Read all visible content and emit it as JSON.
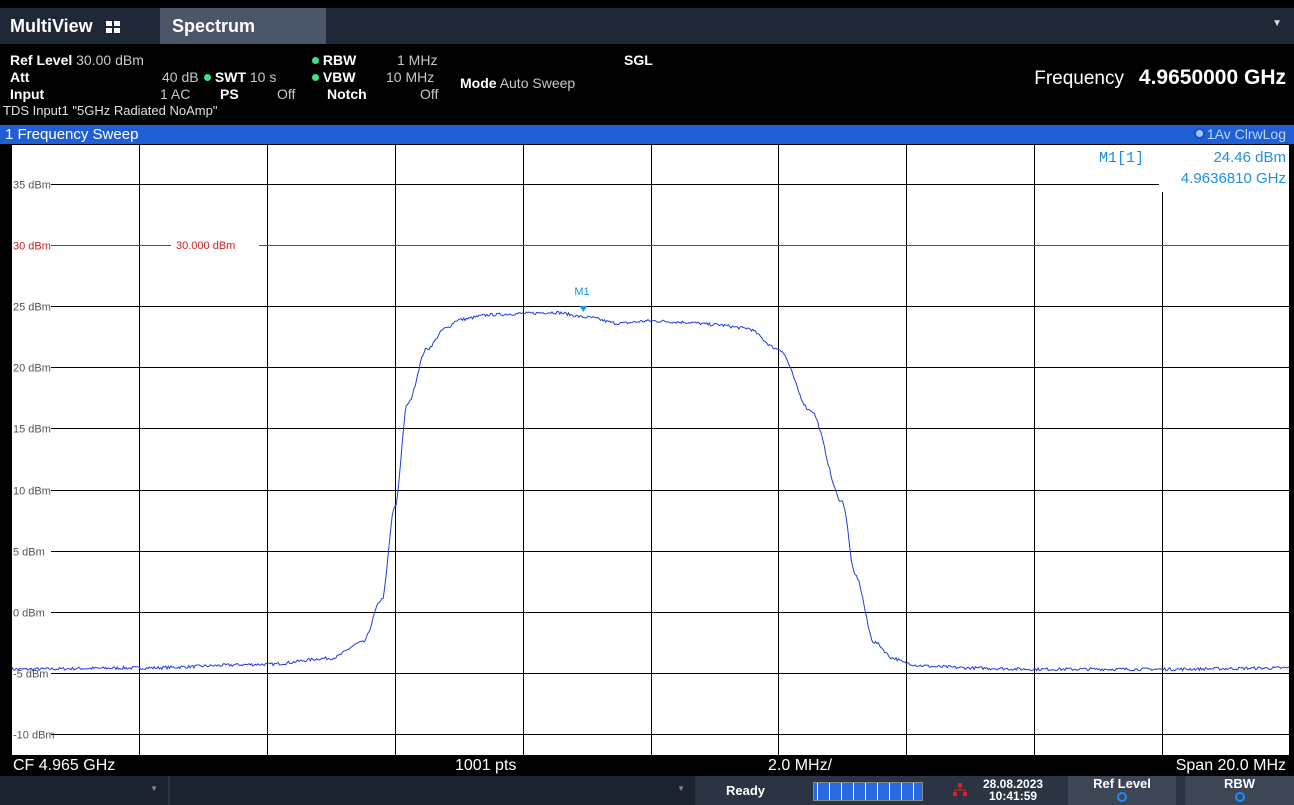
{
  "tabs": {
    "multiview": "MultiView",
    "spectrum": "Spectrum"
  },
  "settings": {
    "ref_level_label": "Ref Level",
    "ref_level_value": "30.00 dBm",
    "att_label": "Att",
    "att_value": "40 dB",
    "input_label": "Input",
    "input_value": "1 AC",
    "rbw_label": "RBW",
    "rbw_value": "1 MHz",
    "swt_label": "SWT",
    "swt_value": "10 s",
    "vbw_label": "VBW",
    "vbw_value": "10 MHz",
    "ps_label": "PS",
    "ps_value": "Off",
    "notch_label": "Notch",
    "notch_value": "Off",
    "sgl": "SGL",
    "mode_label": "Mode",
    "mode_value": "Auto Sweep",
    "frequency_label": "Frequency",
    "frequency_value": "4.9650000 GHz",
    "tds_input": "TDS Input1 \"5GHz Radiated NoAmp\""
  },
  "panel": {
    "title": "1 Frequency Sweep",
    "trace_info": "1Av ClrwLog"
  },
  "marker": {
    "label": "M1",
    "readout_label": "M1[1]",
    "readout_level": "24.46 dBm",
    "readout_freq": "4.9636810 GHz"
  },
  "limit_line": {
    "label": "30.000 dBm",
    "value": 30
  },
  "footer": {
    "cf": "CF 4.965 GHz",
    "pts": "1001 pts",
    "div": "2.0 MHz/",
    "span": "Span 20.0 MHz"
  },
  "statusbar": {
    "ready": "Ready",
    "date": "28.08.2023",
    "time": "10:41:59",
    "btn_ref_level": "Ref Level",
    "btn_rbw": "RBW"
  },
  "colors": {
    "trace": "#1f3fe0",
    "limit": "#cc2020",
    "marker": "#1e90e0",
    "grid": "#000000"
  },
  "chart_data": {
    "type": "line",
    "title": "1 Frequency Sweep",
    "xlabel": "",
    "ylabel": "",
    "x_unit": "MHz offset from CF",
    "xlim": [
      -10,
      10
    ],
    "ylim": [
      -12,
      38
    ],
    "y_ticks": [
      "35 dBm",
      "30 dBm",
      "25 dBm",
      "20 dBm",
      "15 dBm",
      "10 dBm",
      "5 dBm",
      "0 dBm",
      "-5 dBm",
      "-10 dBm"
    ],
    "y_tick_values": [
      35,
      30,
      25,
      20,
      15,
      10,
      5,
      0,
      -5,
      -10
    ],
    "series": [
      {
        "name": "1Av ClrwLog",
        "x": [
          -10,
          -8,
          -6,
          -5,
          -4.5,
          -4.2,
          -4.0,
          -3.8,
          -3.5,
          -3.2,
          -3.0,
          -2.5,
          -2.0,
          -1.5,
          -1.0,
          -0.5,
          0,
          0.5,
          1.0,
          1.5,
          2.0,
          2.5,
          3.0,
          3.2,
          3.5,
          3.8,
          4.0,
          4.2,
          4.5,
          5.0,
          6,
          8,
          10
        ],
        "y": [
          -4.7,
          -4.6,
          -4.3,
          -3.8,
          -2.5,
          1.0,
          8.5,
          17.0,
          21.5,
          23.2,
          23.9,
          24.3,
          24.4,
          24.5,
          24.1,
          23.6,
          23.8,
          23.7,
          23.5,
          23.2,
          21.5,
          16.5,
          9.0,
          3.0,
          -2.5,
          -3.8,
          -4.2,
          -4.4,
          -4.5,
          -4.6,
          -4.7,
          -4.7,
          -4.6
        ]
      }
    ]
  }
}
